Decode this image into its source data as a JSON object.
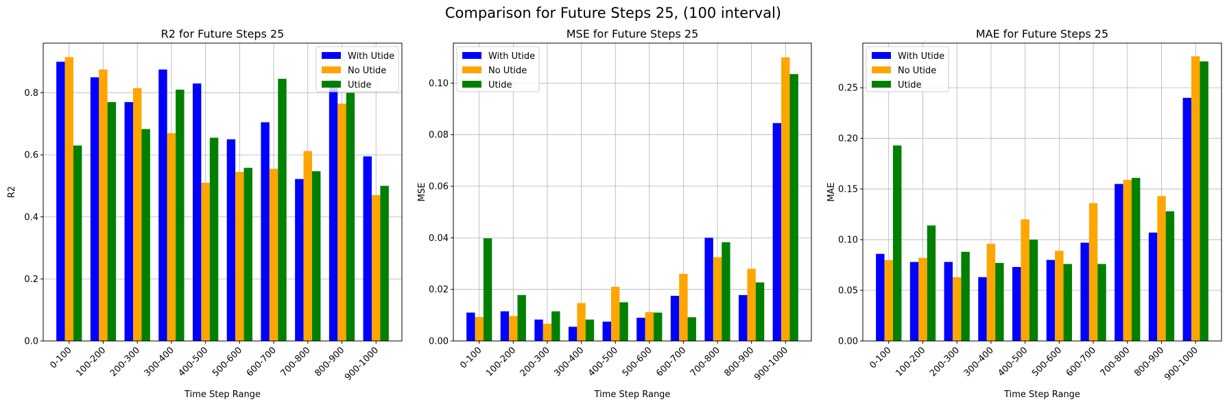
{
  "figure": {
    "title": "Comparison for Future Steps 25, (100 interval)"
  },
  "chart_data": [
    {
      "type": "bar",
      "title": "R2 for Future Steps 25",
      "xlabel": "Time Step Range",
      "ylabel": "R2",
      "ylim": [
        0,
        0.96
      ],
      "yticks": [
        0.0,
        0.2,
        0.4,
        0.6,
        0.8
      ],
      "ytick_labels": [
        "0.0",
        "0.2",
        "0.4",
        "0.6",
        "0.8"
      ],
      "grid": true,
      "legend": "upper right",
      "categories": [
        "0-100",
        "100-200",
        "200-300",
        "300-400",
        "400-500",
        "500-600",
        "600-700",
        "700-800",
        "800-900",
        "900-1000"
      ],
      "series": [
        {
          "name": "With Utide",
          "color": "#0000ff",
          "values": [
            0.9,
            0.85,
            0.77,
            0.875,
            0.83,
            0.65,
            0.705,
            0.522,
            0.84,
            0.595
          ]
        },
        {
          "name": "No Utide",
          "color": "#ffa500",
          "values": [
            0.915,
            0.875,
            0.815,
            0.67,
            0.51,
            0.545,
            0.555,
            0.612,
            0.765,
            0.47
          ]
        },
        {
          "name": "Utide",
          "color": "#008000",
          "values": [
            0.63,
            0.77,
            0.683,
            0.81,
            0.655,
            0.558,
            0.845,
            0.547,
            0.8,
            0.5
          ]
        }
      ]
    },
    {
      "type": "bar",
      "title": "MSE for Future Steps 25",
      "xlabel": "Time Step Range",
      "ylabel": "MSE",
      "ylim": [
        0,
        0.1155
      ],
      "yticks": [
        0.0,
        0.02,
        0.04,
        0.06,
        0.08,
        0.1
      ],
      "ytick_labels": [
        "0.00",
        "0.02",
        "0.04",
        "0.06",
        "0.08",
        "0.10"
      ],
      "grid": true,
      "legend": "upper left",
      "categories": [
        "0-100",
        "100-200",
        "200-300",
        "300-400",
        "400-500",
        "500-600",
        "600-700",
        "700-800",
        "800-900",
        "900-1000"
      ],
      "series": [
        {
          "name": "With Utide",
          "color": "#0000ff",
          "values": [
            0.011,
            0.0115,
            0.0083,
            0.0055,
            0.0075,
            0.009,
            0.0175,
            0.04,
            0.0178,
            0.0845
          ]
        },
        {
          "name": "No Utide",
          "color": "#ffa500",
          "values": [
            0.0093,
            0.0097,
            0.0067,
            0.0147,
            0.021,
            0.0112,
            0.026,
            0.0325,
            0.028,
            0.11
          ]
        },
        {
          "name": "Utide",
          "color": "#008000",
          "values": [
            0.0398,
            0.0178,
            0.0115,
            0.0083,
            0.015,
            0.011,
            0.0092,
            0.0383,
            0.0227,
            0.1035
          ]
        }
      ]
    },
    {
      "type": "bar",
      "title": "MAE for Future Steps 25",
      "xlabel": "Time Step Range",
      "ylabel": "MAE",
      "ylim": [
        0,
        0.294
      ],
      "yticks": [
        0.0,
        0.05,
        0.1,
        0.15,
        0.2,
        0.25
      ],
      "ytick_labels": [
        "0.00",
        "0.05",
        "0.10",
        "0.15",
        "0.20",
        "0.25"
      ],
      "grid": true,
      "legend": "upper left",
      "categories": [
        "0-100",
        "100-200",
        "200-300",
        "300-400",
        "400-500",
        "500-600",
        "600-700",
        "700-800",
        "800-900",
        "900-1000"
      ],
      "series": [
        {
          "name": "With Utide",
          "color": "#0000ff",
          "values": [
            0.086,
            0.078,
            0.078,
            0.063,
            0.073,
            0.08,
            0.097,
            0.155,
            0.107,
            0.24
          ]
        },
        {
          "name": "No Utide",
          "color": "#ffa500",
          "values": [
            0.08,
            0.082,
            0.063,
            0.096,
            0.12,
            0.089,
            0.136,
            0.159,
            0.143,
            0.281
          ]
        },
        {
          "name": "Utide",
          "color": "#008000",
          "values": [
            0.193,
            0.114,
            0.088,
            0.077,
            0.1,
            0.076,
            0.076,
            0.161,
            0.128,
            0.276
          ]
        }
      ]
    }
  ]
}
